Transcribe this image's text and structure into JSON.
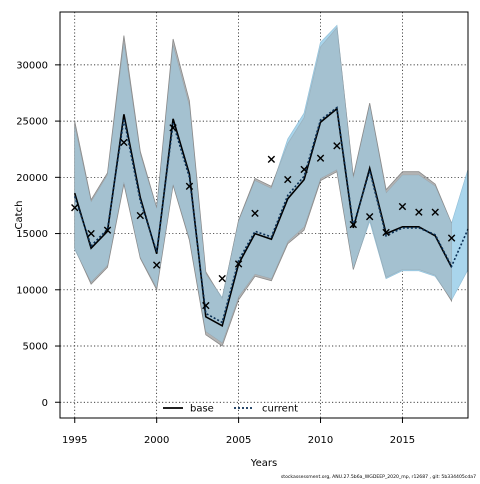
{
  "chart_data": {
    "type": "line",
    "xlabel": "Years",
    "ylabel": "Catch",
    "xlim": [
      1994.1,
      2019
    ],
    "ylim": [
      -1400,
      34700
    ],
    "x_ticks": [
      1995,
      2000,
      2005,
      2010,
      2015
    ],
    "y_ticks": [
      0,
      5000,
      10000,
      15000,
      20000,
      25000,
      30000
    ],
    "grid": true,
    "legend_position": "bottom-center",
    "footer": "stockassessment.org, ANU.27.5b6a_WGDEEP_2020_mp, r12687 , git: 5b334405cda7",
    "colors": {
      "base_band": "#9a9a9a",
      "current_band": "#a9d6ec",
      "overlap_band": "#a6c4d6",
      "base_line": "#000000",
      "current_line": "#0a2f55",
      "observed": "#000000"
    },
    "series": [
      {
        "name": "base",
        "style": "solid",
        "x": [
          1995,
          1996,
          1997,
          1998,
          1999,
          2000,
          2001,
          2002,
          2003,
          2004,
          2005,
          2006,
          2007,
          2008,
          2009,
          2010,
          2011,
          2012,
          2013,
          2014,
          2015,
          2016,
          2017,
          2018
        ],
        "values": [
          18600,
          13700,
          15200,
          25600,
          18200,
          13200,
          25200,
          20300,
          7600,
          6800,
          12300,
          15000,
          14500,
          18100,
          19800,
          24900,
          26100,
          15500,
          20800,
          15000,
          15600,
          15600,
          14800,
          12000
        ],
        "lower": [
          13700,
          10500,
          12000,
          19400,
          12800,
          10000,
          19300,
          14400,
          6000,
          5000,
          9100,
          11200,
          10800,
          14100,
          15300,
          19700,
          20500,
          11800,
          16300,
          11100,
          11800,
          11800,
          11300,
          9000
        ],
        "upper": [
          25000,
          18000,
          20400,
          32600,
          22300,
          17300,
          32300,
          26800,
          11600,
          9200,
          16200,
          19900,
          19200,
          23000,
          25300,
          31600,
          33300,
          20100,
          26600,
          18900,
          20500,
          20500,
          19400,
          15900
        ]
      },
      {
        "name": "current",
        "style": "dotted",
        "x": [
          1995,
          1996,
          1997,
          1998,
          1999,
          2000,
          2001,
          2002,
          2003,
          2004,
          2005,
          2006,
          2007,
          2008,
          2009,
          2010,
          2011,
          2012,
          2013,
          2014,
          2015,
          2016,
          2017,
          2018,
          2019
        ],
        "values": [
          18300,
          13900,
          15400,
          25200,
          17900,
          13400,
          24800,
          20000,
          7900,
          7100,
          12600,
          15200,
          14700,
          18400,
          20100,
          25100,
          26200,
          15700,
          20600,
          14800,
          15500,
          15500,
          14900,
          12100,
          15400
        ],
        "lower": [
          13600,
          10700,
          12200,
          19600,
          12900,
          10200,
          19400,
          14600,
          6300,
          5300,
          9400,
          11400,
          11000,
          14300,
          15600,
          19900,
          20700,
          11900,
          16100,
          11000,
          11700,
          11700,
          11200,
          9100,
          11800
        ],
        "upper": [
          24500,
          17800,
          20200,
          31900,
          22000,
          17200,
          31700,
          26300,
          11400,
          9300,
          16100,
          19700,
          19000,
          23400,
          25700,
          32000,
          33500,
          19900,
          26400,
          18600,
          20200,
          20200,
          19200,
          15900,
          20700
        ]
      },
      {
        "name": "observed",
        "marker": "x",
        "x": [
          1995,
          1996,
          1997,
          1998,
          1999,
          2000,
          2001,
          2002,
          2003,
          2004,
          2005,
          2006,
          2007,
          2008,
          2009,
          2010,
          2011,
          2012,
          2013,
          2014,
          2015,
          2016,
          2017,
          2018
        ],
        "values": [
          17300,
          15000,
          15300,
          23100,
          16600,
          12200,
          24400,
          19200,
          8600,
          11000,
          12300,
          16800,
          21600,
          19800,
          20700,
          21700,
          22800,
          15800,
          16500,
          15100,
          17400,
          16900,
          16900,
          14600
        ]
      }
    ]
  }
}
